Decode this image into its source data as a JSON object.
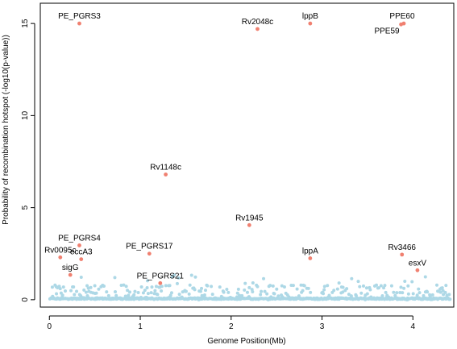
{
  "colors": {
    "background_point": "#add8e6",
    "highlight_point": "#f08070",
    "axis": "#000000"
  },
  "chart_data": {
    "type": "scatter",
    "title": "",
    "xlabel": "Genome Position(Mb)",
    "ylabel": "Probability of recombination hotspot (-log10(p-value))",
    "xlim": [
      -0.1,
      4.45
    ],
    "ylim": [
      -0.4,
      16.1
    ],
    "xticks": [
      0,
      1,
      2,
      3,
      4
    ],
    "yticks": [
      0,
      5,
      10,
      15
    ],
    "grid": false,
    "legend": "none",
    "highlighted": [
      {
        "label": "PE_PGRS3",
        "x": 0.33,
        "y": 15.0,
        "label_side": "above"
      },
      {
        "label": "Rv2048c",
        "x": 2.29,
        "y": 14.7,
        "label_side": "above"
      },
      {
        "label": "lppB",
        "x": 2.87,
        "y": 15.0,
        "label_side": "above"
      },
      {
        "label": "PPE60",
        "x": 3.9,
        "y": 15.0,
        "label_side": "above-right"
      },
      {
        "label": "PPE59",
        "x": 3.87,
        "y": 14.95,
        "label_side": "below-left"
      },
      {
        "label": "Rv1148c",
        "x": 1.28,
        "y": 6.8,
        "label_side": "above"
      },
      {
        "label": "Rv1945",
        "x": 2.2,
        "y": 4.05,
        "label_side": "above"
      },
      {
        "label": "PE_PGRS4",
        "x": 0.33,
        "y": 2.95,
        "label_side": "above"
      },
      {
        "label": "PE_PGRS17",
        "x": 1.1,
        "y": 2.5,
        "label_side": "above"
      },
      {
        "label": "Rv0095c",
        "x": 0.12,
        "y": 2.3,
        "label_side": "above"
      },
      {
        "label": "eccA3",
        "x": 0.35,
        "y": 2.2,
        "label_side": "above"
      },
      {
        "label": "lppA",
        "x": 2.87,
        "y": 2.25,
        "label_side": "above"
      },
      {
        "label": "Rv3466",
        "x": 3.88,
        "y": 2.45,
        "label_side": "above"
      },
      {
        "label": "sigG",
        "x": 0.23,
        "y": 1.35,
        "label_side": "above"
      },
      {
        "label": "esxV",
        "x": 4.05,
        "y": 1.6,
        "label_side": "above"
      },
      {
        "label": "PE_PGRS21",
        "x": 1.22,
        "y": 0.9,
        "label_side": "above"
      }
    ],
    "background_series": {
      "name": "",
      "x_range": [
        0.0,
        4.41
      ],
      "count": 520,
      "baseline_y": 0.02,
      "typical_max_y": 0.8,
      "occasional_max_y": 1.4
    }
  }
}
